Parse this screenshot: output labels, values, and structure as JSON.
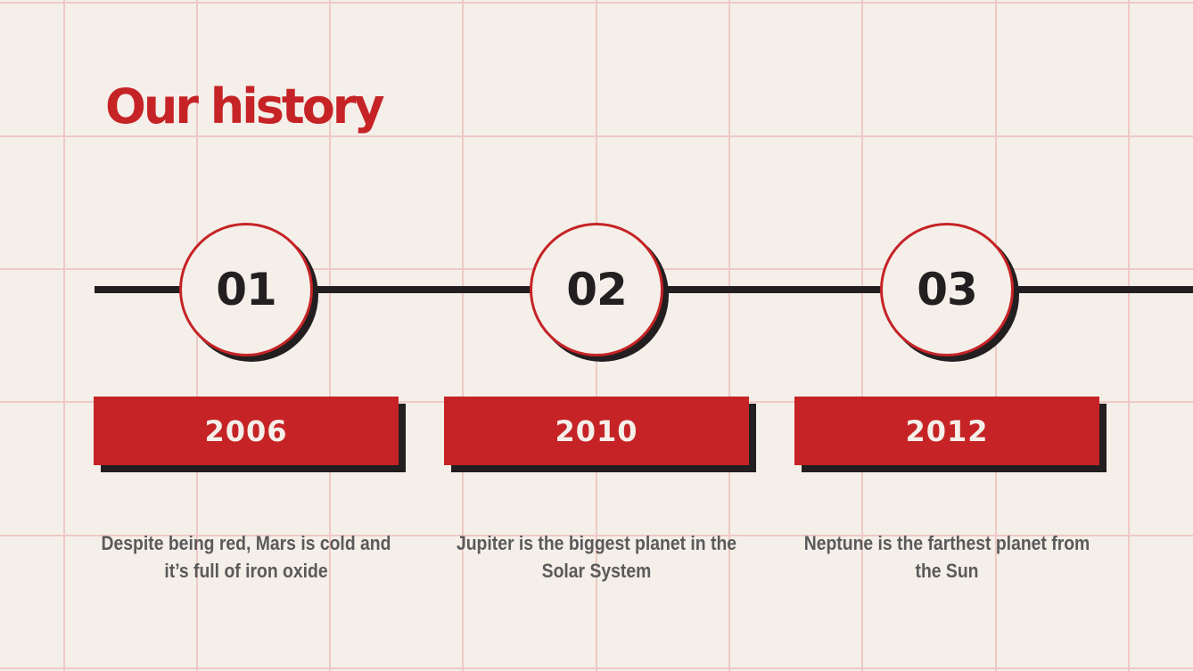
{
  "title": "Our history",
  "colors": {
    "accent": "#c62326",
    "dark": "#231f20",
    "background": "#f4efe9",
    "grid": "#efc9c5"
  },
  "milestones": [
    {
      "number": "01",
      "year": "2006",
      "description": "Despite being red, Mars is cold and it’s full of iron oxide"
    },
    {
      "number": "02",
      "year": "2010",
      "description": "Jupiter is the biggest planet in the Solar System"
    },
    {
      "number": "03",
      "year": "2012",
      "description": "Neptune is the farthest planet from the Sun"
    }
  ]
}
